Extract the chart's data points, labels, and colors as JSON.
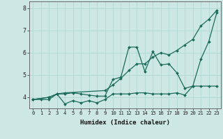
{
  "xlabel": "Humidex (Indice chaleur)",
  "background_color": "#cde8e4",
  "grid_color": "#b0d8d4",
  "line_color": "#1a6b5a",
  "xlim": [
    -0.5,
    23.5
  ],
  "ylim": [
    3.5,
    8.3
  ],
  "yticks": [
    4,
    5,
    6,
    7,
    8
  ],
  "xticks": [
    0,
    1,
    2,
    3,
    4,
    5,
    6,
    7,
    8,
    9,
    10,
    11,
    12,
    13,
    14,
    15,
    16,
    17,
    18,
    19,
    20,
    21,
    22,
    23
  ],
  "line1_x": [
    0,
    1,
    2,
    3,
    4,
    5,
    6,
    7,
    8,
    9,
    10,
    11,
    12,
    13,
    14,
    15,
    16,
    17,
    18,
    19,
    20,
    21,
    22,
    23
  ],
  "line1_y": [
    3.9,
    3.9,
    3.9,
    4.15,
    3.7,
    3.85,
    3.75,
    3.85,
    3.75,
    3.9,
    4.15,
    4.15,
    4.15,
    4.2,
    4.2,
    4.15,
    4.15,
    4.15,
    4.2,
    4.1,
    4.5,
    4.5,
    4.5,
    4.5
  ],
  "line2_x": [
    0,
    2,
    3,
    4,
    5,
    6,
    7,
    8,
    9,
    10,
    11,
    12,
    13,
    14,
    15,
    16,
    17,
    18,
    19,
    20,
    21,
    22,
    23
  ],
  "line2_y": [
    3.9,
    4.0,
    4.15,
    4.15,
    4.2,
    4.15,
    4.1,
    4.05,
    4.05,
    4.8,
    4.9,
    6.25,
    6.25,
    5.15,
    6.05,
    5.45,
    5.5,
    5.1,
    4.4,
    4.5,
    5.7,
    6.5,
    7.8
  ],
  "line3_x": [
    0,
    2,
    3,
    4,
    9,
    10,
    11,
    12,
    13,
    14,
    15,
    16,
    17,
    18,
    19,
    20,
    21,
    22,
    23
  ],
  "line3_y": [
    3.9,
    4.0,
    4.15,
    4.2,
    4.3,
    4.55,
    4.85,
    5.2,
    5.5,
    5.5,
    5.8,
    6.0,
    5.9,
    6.1,
    6.35,
    6.6,
    7.2,
    7.5,
    7.9
  ]
}
